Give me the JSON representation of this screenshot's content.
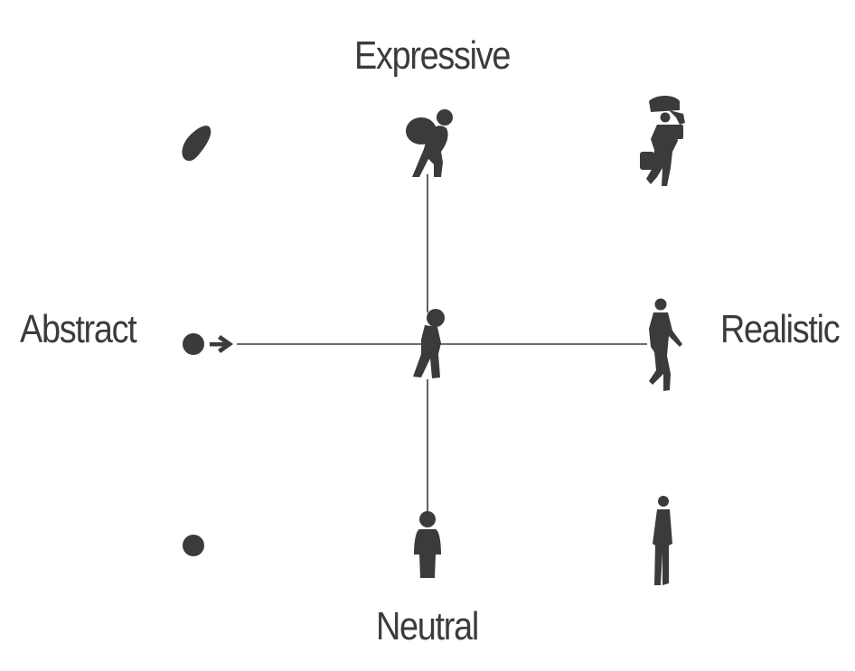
{
  "diagram": {
    "labels": {
      "top": "Expressive",
      "bottom": "Neutral",
      "left": "Abstract",
      "right": "Realistic"
    },
    "grid": {
      "rows": [
        "Expressive",
        "Center",
        "Neutral"
      ],
      "columns": [
        "Abstract",
        "Center",
        "Realistic"
      ],
      "icons": [
        [
          "abstract-blob-icon",
          "person-carrying-sack-icon",
          "realistic-person-with-luggage-icon"
        ],
        [
          "dot-with-arrow-icon",
          "walking-figure-icon",
          "realistic-walking-person-icon"
        ],
        [
          "dot-icon",
          "neutral-person-icon",
          "realistic-standing-person-icon"
        ]
      ]
    },
    "colors": {
      "ink": "#3a3b3b",
      "background": "#ffffff"
    }
  }
}
